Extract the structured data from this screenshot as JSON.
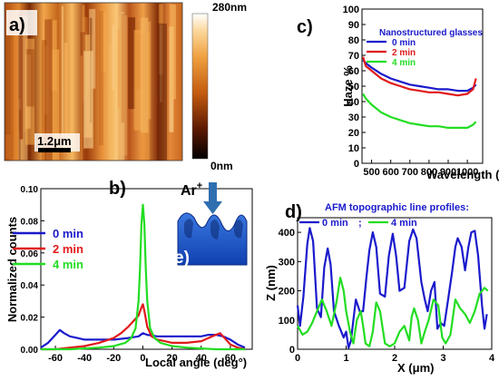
{
  "panel_a": {
    "label": "a)",
    "scale_bar_label": "1.2μm",
    "colorbar_max": "280nm",
    "colorbar_min": "0nm"
  },
  "panel_e": {
    "label": "e)",
    "ion_label": "Ar",
    "ion_sup": "+"
  },
  "panel_labels": {
    "b": "b)",
    "c": "c)",
    "d": "d)"
  },
  "chart_data": [
    {
      "id": "c",
      "type": "line",
      "title": "",
      "xlabel": "Wavelength (nm)",
      "ylabel": "Haze %",
      "xlim": [
        450,
        1080
      ],
      "ylim": [
        0,
        100
      ],
      "xticks": [
        500,
        600,
        700,
        800,
        900,
        1000
      ],
      "yticks": [
        0,
        10,
        20,
        30,
        40,
        50,
        60,
        70,
        80,
        90,
        100
      ],
      "legend_title": "Nanostructured glasses",
      "legend_placement": "top-right",
      "series": [
        {
          "name": "0 min",
          "color": "#1a1acc",
          "x": [
            455,
            470,
            500,
            550,
            600,
            650,
            700,
            750,
            800,
            850,
            900,
            950,
            1000,
            1030,
            1045
          ],
          "y": [
            67,
            65,
            62,
            58,
            55,
            53,
            51,
            50,
            49,
            48,
            48,
            47,
            47,
            49,
            51
          ]
        },
        {
          "name": "2 min",
          "color": "#e01a1a",
          "x": [
            455,
            470,
            500,
            550,
            600,
            650,
            700,
            750,
            800,
            850,
            900,
            950,
            1000,
            1030,
            1045
          ],
          "y": [
            69,
            63,
            60,
            55,
            52,
            50,
            48,
            47,
            46,
            46,
            45,
            44,
            45,
            48,
            55
          ]
        },
        {
          "name": "4 min",
          "color": "#22dd22",
          "x": [
            455,
            470,
            500,
            550,
            600,
            650,
            700,
            750,
            800,
            850,
            900,
            950,
            1000,
            1030,
            1045
          ],
          "y": [
            45,
            42,
            38,
            33,
            30,
            28,
            26,
            25,
            24,
            24,
            23,
            23,
            23,
            25,
            27
          ]
        }
      ]
    },
    {
      "id": "b",
      "type": "line",
      "title": "",
      "xlabel": "Local angle (deg°)",
      "ylabel": "Normalized counts",
      "xlim": [
        -70,
        75
      ],
      "ylim": [
        0,
        0.1
      ],
      "xticks": [
        -60,
        -40,
        -20,
        0,
        20,
        40,
        60
      ],
      "yticks": [
        0.0,
        0.02,
        0.04,
        0.06,
        0.08,
        0.1
      ],
      "ytick_labels": [
        "0.00",
        "0.02",
        "0.04",
        "0.06",
        "0.08",
        "0.10"
      ],
      "legend_placement": "middle-left",
      "series": [
        {
          "name": "0 min",
          "color": "#1a1acc",
          "x": [
            -70,
            -65,
            -60,
            -57,
            -54,
            -50,
            -45,
            -40,
            -30,
            -20,
            -10,
            -3,
            0,
            3,
            10,
            20,
            30,
            40,
            45,
            50,
            55,
            60,
            65,
            70
          ],
          "y": [
            0.001,
            0.004,
            0.009,
            0.012,
            0.01,
            0.008,
            0.007,
            0.006,
            0.006,
            0.006,
            0.007,
            0.008,
            0.01,
            0.009,
            0.008,
            0.008,
            0.008,
            0.008,
            0.009,
            0.009,
            0.008,
            0.006,
            0.003,
            0.001
          ]
        },
        {
          "name": "2 min",
          "color": "#e01a1a",
          "x": [
            -70,
            -60,
            -50,
            -40,
            -30,
            -20,
            -15,
            -10,
            -6,
            -3,
            -1,
            0,
            1,
            3,
            6,
            10,
            15,
            20,
            30,
            40,
            45,
            50,
            53,
            56,
            60,
            65,
            70
          ],
          "y": [
            0.0,
            0.0,
            0.001,
            0.002,
            0.004,
            0.007,
            0.01,
            0.014,
            0.018,
            0.021,
            0.026,
            0.028,
            0.024,
            0.014,
            0.008,
            0.006,
            0.005,
            0.004,
            0.004,
            0.005,
            0.007,
            0.009,
            0.01,
            0.007,
            0.003,
            0.001,
            0.0
          ]
        },
        {
          "name": "4 min",
          "color": "#22dd22",
          "x": [
            -70,
            -50,
            -30,
            -20,
            -12,
            -8,
            -5,
            -3,
            -2,
            -1,
            0,
            1,
            2,
            3,
            5,
            8,
            12,
            20,
            30,
            50,
            70
          ],
          "y": [
            0.0,
            0.0,
            0.001,
            0.002,
            0.004,
            0.007,
            0.013,
            0.03,
            0.05,
            0.078,
            0.09,
            0.078,
            0.05,
            0.03,
            0.013,
            0.007,
            0.004,
            0.002,
            0.001,
            0.0,
            0.0
          ]
        }
      ]
    },
    {
      "id": "d",
      "type": "line",
      "title": "AFM topographic line profiles:",
      "xlabel": "X (μm)",
      "ylabel": "Z (nm)",
      "xlim": [
        0,
        4
      ],
      "ylim": [
        0,
        450
      ],
      "xticks": [
        0,
        1,
        2,
        3,
        4
      ],
      "yticks": [
        0,
        100,
        200,
        300,
        400
      ],
      "legend_placement": "top",
      "legend_separator": ";",
      "series": [
        {
          "name": "0 min",
          "color": "#1a1acc",
          "x": [
            0.0,
            0.05,
            0.12,
            0.2,
            0.25,
            0.32,
            0.4,
            0.48,
            0.55,
            0.62,
            0.68,
            0.75,
            0.85,
            0.95,
            1.0,
            1.05,
            1.1,
            1.15,
            1.2,
            1.28,
            1.35,
            1.42,
            1.48,
            1.55,
            1.62,
            1.7,
            1.8,
            1.88,
            1.96,
            2.03,
            2.1,
            2.2,
            2.3,
            2.38,
            2.45,
            2.55,
            2.62,
            2.68,
            2.75,
            2.82,
            2.88,
            2.95,
            3.02,
            3.1,
            3.18,
            3.25,
            3.3,
            3.38,
            3.45,
            3.52,
            3.58,
            3.65,
            3.72,
            3.8,
            3.85,
            3.9
          ],
          "y": [
            150,
            80,
            180,
            360,
            415,
            370,
            140,
            110,
            280,
            345,
            290,
            130,
            80,
            40,
            60,
            5,
            30,
            100,
            170,
            130,
            130,
            250,
            340,
            400,
            350,
            190,
            180,
            320,
            395,
            320,
            200,
            210,
            370,
            410,
            380,
            230,
            170,
            130,
            200,
            230,
            70,
            90,
            80,
            170,
            260,
            350,
            380,
            350,
            270,
            350,
            400,
            405,
            320,
            150,
            70,
            120
          ]
        },
        {
          "name": "4 min",
          "color": "#22dd22",
          "x": [
            0.0,
            0.1,
            0.2,
            0.3,
            0.4,
            0.5,
            0.6,
            0.7,
            0.8,
            0.88,
            0.95,
            1.0,
            1.08,
            1.15,
            1.22,
            1.3,
            1.35,
            1.4,
            1.48,
            1.55,
            1.62,
            1.7,
            1.8,
            1.9,
            2.0,
            2.1,
            2.2,
            2.3,
            2.35,
            2.4,
            2.48,
            2.55,
            2.62,
            2.7,
            2.8,
            2.9,
            2.98,
            3.05,
            3.15,
            3.25,
            3.35,
            3.45,
            3.55,
            3.65,
            3.75,
            3.85,
            3.92
          ],
          "y": [
            80,
            50,
            60,
            90,
            130,
            170,
            130,
            80,
            160,
            245,
            200,
            130,
            60,
            20,
            100,
            130,
            80,
            20,
            10,
            60,
            160,
            130,
            20,
            10,
            20,
            60,
            80,
            30,
            110,
            140,
            100,
            20,
            60,
            100,
            170,
            150,
            40,
            20,
            50,
            170,
            140,
            120,
            90,
            130,
            190,
            210,
            200
          ]
        }
      ]
    }
  ]
}
